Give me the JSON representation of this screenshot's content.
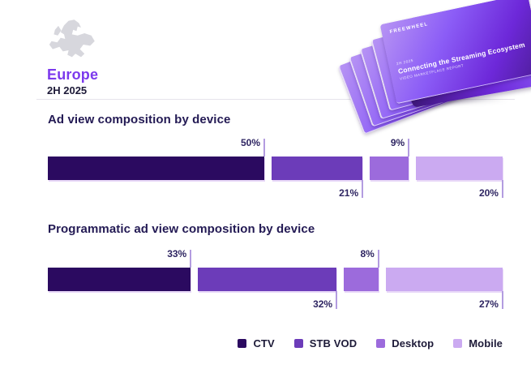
{
  "header": {
    "region": "Europe",
    "period": "2H 2025"
  },
  "report_stack": {
    "logo": "FREEWHEEL",
    "eyebrow": "2H 2025",
    "title": "Connecting the Streaming Ecosystem",
    "subtitle": "VIDEO MARKETPLACE REPORT"
  },
  "colors": {
    "series": [
      "#2B0A60",
      "#6C3CB9",
      "#9C6BDC",
      "#CBAAF1"
    ],
    "accent": "#7C3AED",
    "heading": "#231A54",
    "tick": "#B39CE0",
    "map": "#D7D7DD",
    "divider": "#E6E4EC"
  },
  "legend": {
    "items": [
      {
        "label": "CTV",
        "color": "#2B0A60"
      },
      {
        "label": "STB VOD",
        "color": "#6C3CB9"
      },
      {
        "label": "Desktop",
        "color": "#9C6BDC"
      },
      {
        "label": "Mobile",
        "color": "#CBAAF1"
      }
    ]
  },
  "chart_data": [
    {
      "type": "bar",
      "title": "Ad view composition by device",
      "orientation": "horizontal-stacked",
      "categories": [
        "CTV",
        "STB VOD",
        "Desktop",
        "Mobile"
      ],
      "values": [
        50,
        21,
        9,
        20
      ],
      "unit": "%",
      "label_positions": [
        "above",
        "below",
        "above",
        "below"
      ],
      "xlim": [
        0,
        100
      ],
      "grid": false,
      "legend_position": "bottom"
    },
    {
      "type": "bar",
      "title": "Programmatic ad view composition by device",
      "orientation": "horizontal-stacked",
      "categories": [
        "CTV",
        "STB VOD",
        "Desktop",
        "Mobile"
      ],
      "values": [
        33,
        32,
        8,
        27
      ],
      "unit": "%",
      "label_positions": [
        "above",
        "below",
        "above",
        "below"
      ],
      "xlim": [
        0,
        100
      ],
      "grid": false,
      "legend_position": "bottom"
    }
  ]
}
